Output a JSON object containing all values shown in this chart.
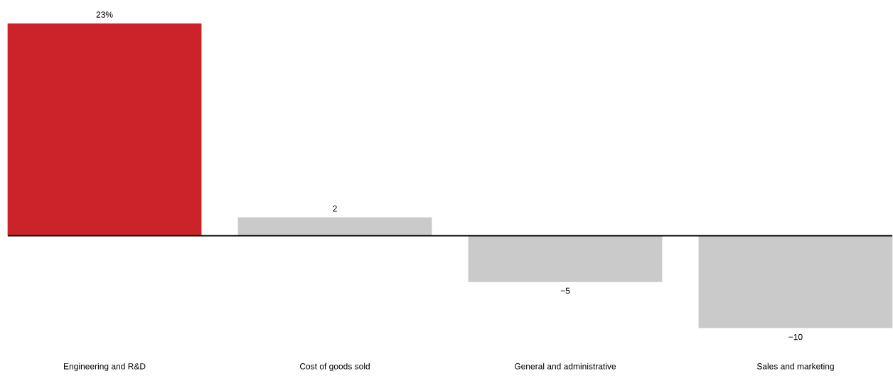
{
  "chart_data": {
    "type": "bar",
    "categories": [
      "Engineering and R&D",
      "Cost of goods sold",
      "General and administrative",
      "Sales and marketing"
    ],
    "values": [
      23,
      2,
      -5,
      -10
    ],
    "colors": [
      "#cc2229",
      "#cacaca",
      "#cacaca",
      "#cacaca"
    ],
    "value_labels": [
      "23%",
      "2",
      "−5",
      "−10"
    ]
  }
}
